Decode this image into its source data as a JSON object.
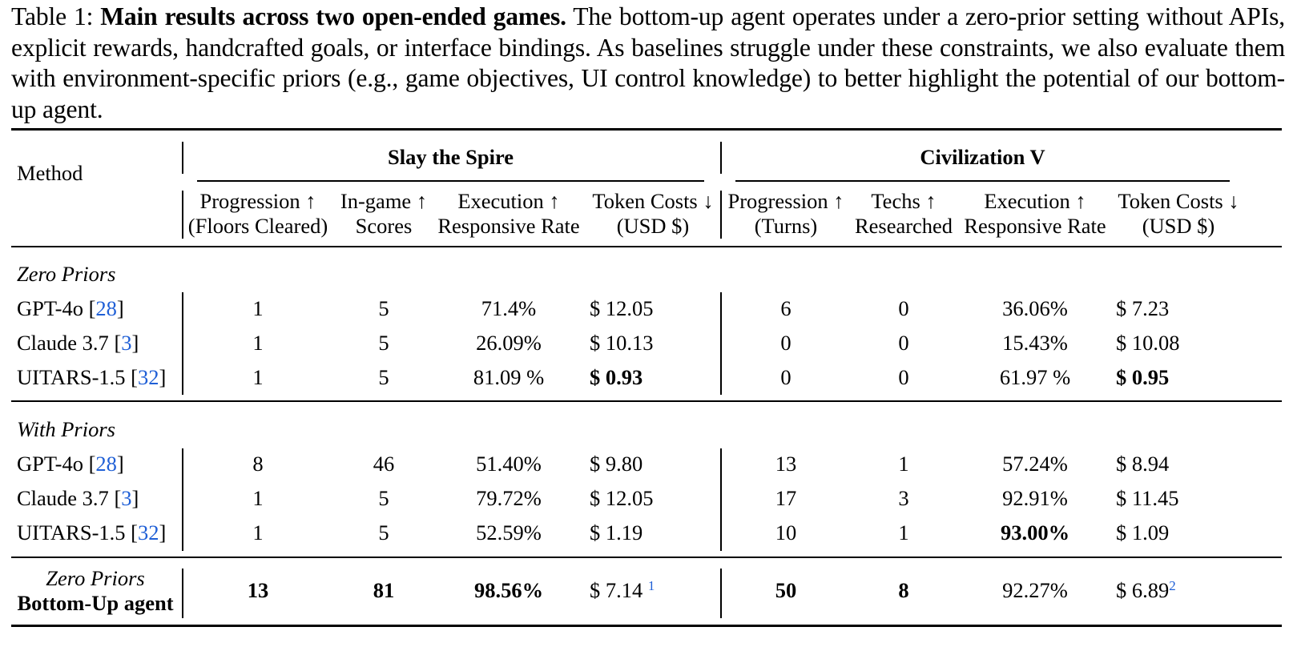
{
  "caption": {
    "label": "Table 1:",
    "title": "Main results across two open-ended games.",
    "text": "The bottom-up agent operates under a zero-prior setting without APIs, explicit rewards, handcrafted goals, or interface bindings. As baselines struggle under these constraints, we also evaluate them with environment-specific priors (e.g., game objectives, UI control knowledge) to better highlight the potential of our bottom-up agent."
  },
  "table": {
    "method_header": "Method",
    "groups": [
      "Slay the Spire",
      "Civilization V"
    ],
    "columns": [
      {
        "line1": "Progression ↑",
        "line2": "(Floors Cleared)"
      },
      {
        "line1": "In-game ↑",
        "line2": "Scores"
      },
      {
        "line1": "Execution ↑",
        "line2": "Responsive Rate"
      },
      {
        "line1": "Token Costs ↓",
        "line2": "(USD $)"
      },
      {
        "line1": "Progression ↑",
        "line2": "(Turns)"
      },
      {
        "line1": "Techs ↑",
        "line2": "Researched"
      },
      {
        "line1": "Execution ↑",
        "line2": "Responsive Rate"
      },
      {
        "line1": "Token Costs ↓",
        "line2": "(USD $)"
      }
    ],
    "sections": [
      {
        "title": "Zero Priors",
        "rows": [
          {
            "method": "GPT-4o",
            "ref": "28",
            "values": [
              "1",
              "5",
              "71.4%",
              "$ 12.05",
              "6",
              "0",
              "36.06%",
              "$ 7.23"
            ]
          },
          {
            "method": "Claude 3.7",
            "ref": "3",
            "values": [
              "1",
              "5",
              "26.09%",
              "$ 10.13",
              "0",
              "0",
              "15.43%",
              "$ 10.08"
            ]
          },
          {
            "method": "UITARS-1.5",
            "ref": "32",
            "values": [
              "1",
              "5",
              "81.09 %",
              "$ 0.93",
              "0",
              "0",
              "61.97 %",
              "$ 0.95"
            ]
          }
        ]
      },
      {
        "title": "With Priors",
        "rows": [
          {
            "method": "GPT-4o",
            "ref": "28",
            "values": [
              "8",
              "46",
              "51.40%",
              "$ 9.80",
              "13",
              "1",
              "57.24%",
              "$ 8.94"
            ]
          },
          {
            "method": "Claude 3.7",
            "ref": "3",
            "values": [
              "1",
              "5",
              "79.72%",
              "$ 12.05",
              "17",
              "3",
              "92.91%",
              "$ 11.45"
            ]
          },
          {
            "method": "UITARS-1.5",
            "ref": "32",
            "values": [
              "1",
              "5",
              "52.59%",
              "$ 1.19",
              "10",
              "1",
              "93.00%",
              "$ 1.09"
            ]
          }
        ]
      }
    ],
    "final_row": {
      "method_line1": "Zero Priors",
      "method_line2": "Bottom-Up agent",
      "values": [
        "13",
        "81",
        "98.56%",
        "$ 7.14",
        "50",
        "8",
        "92.27%",
        "$ 6.89"
      ],
      "footnotes": {
        "token_slay": "1",
        "token_civ": "2"
      }
    }
  }
}
